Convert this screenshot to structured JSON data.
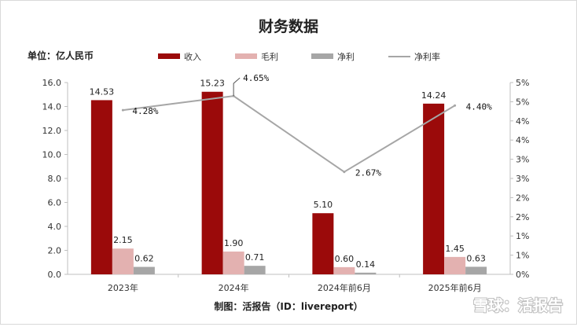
{
  "title": "财务数据",
  "unit_label": "单位：亿人民币",
  "source_label": "制图：活报告（ID：livereport）",
  "watermark": "雪球：活报告",
  "colors": {
    "revenue": "#9b0a0a",
    "gross_profit": "#e3b1b0",
    "net_profit": "#a6a6a6",
    "net_margin": "#a6a6a6",
    "axis": "#bfbfbf"
  },
  "chart_data": {
    "type": "bar",
    "title": "财务数据",
    "categories": [
      "2023年",
      "2024年",
      "2024年前6月",
      "2025年前6月"
    ],
    "series": [
      {
        "name": "收入",
        "type": "bar",
        "axis": "left",
        "values": [
          14.53,
          15.23,
          5.1,
          14.24
        ],
        "labels": [
          "14.53",
          "15.23",
          "5.10",
          "14.24"
        ]
      },
      {
        "name": "毛利",
        "type": "bar",
        "axis": "left",
        "values": [
          2.15,
          1.9,
          0.6,
          1.45
        ],
        "labels": [
          "2.15",
          "1.90",
          "0.60",
          "1.45"
        ]
      },
      {
        "name": "净利",
        "type": "bar",
        "axis": "left",
        "values": [
          0.62,
          0.71,
          0.14,
          0.63
        ],
        "labels": [
          "0.62",
          "0.71",
          "0.14",
          "0.63"
        ]
      },
      {
        "name": "净利率",
        "type": "line",
        "axis": "right",
        "values": [
          4.28,
          4.65,
          2.67,
          4.4
        ],
        "labels": [
          "4.28%",
          "4.65%",
          "2.67%",
          "4.40%"
        ]
      }
    ],
    "y_left": {
      "ylim": [
        0,
        16
      ],
      "ticks": [
        "0.0",
        "2.0",
        "4.0",
        "6.0",
        "8.0",
        "10.0",
        "12.0",
        "14.0",
        "16.0"
      ]
    },
    "y_right": {
      "ylim": [
        0,
        5
      ],
      "ticks": [
        "0%",
        "1%",
        "1%",
        "2%",
        "2%",
        "3%",
        "3%",
        "4%",
        "4%",
        "5%",
        "5%"
      ]
    },
    "legend_position": "top",
    "grid": false
  }
}
